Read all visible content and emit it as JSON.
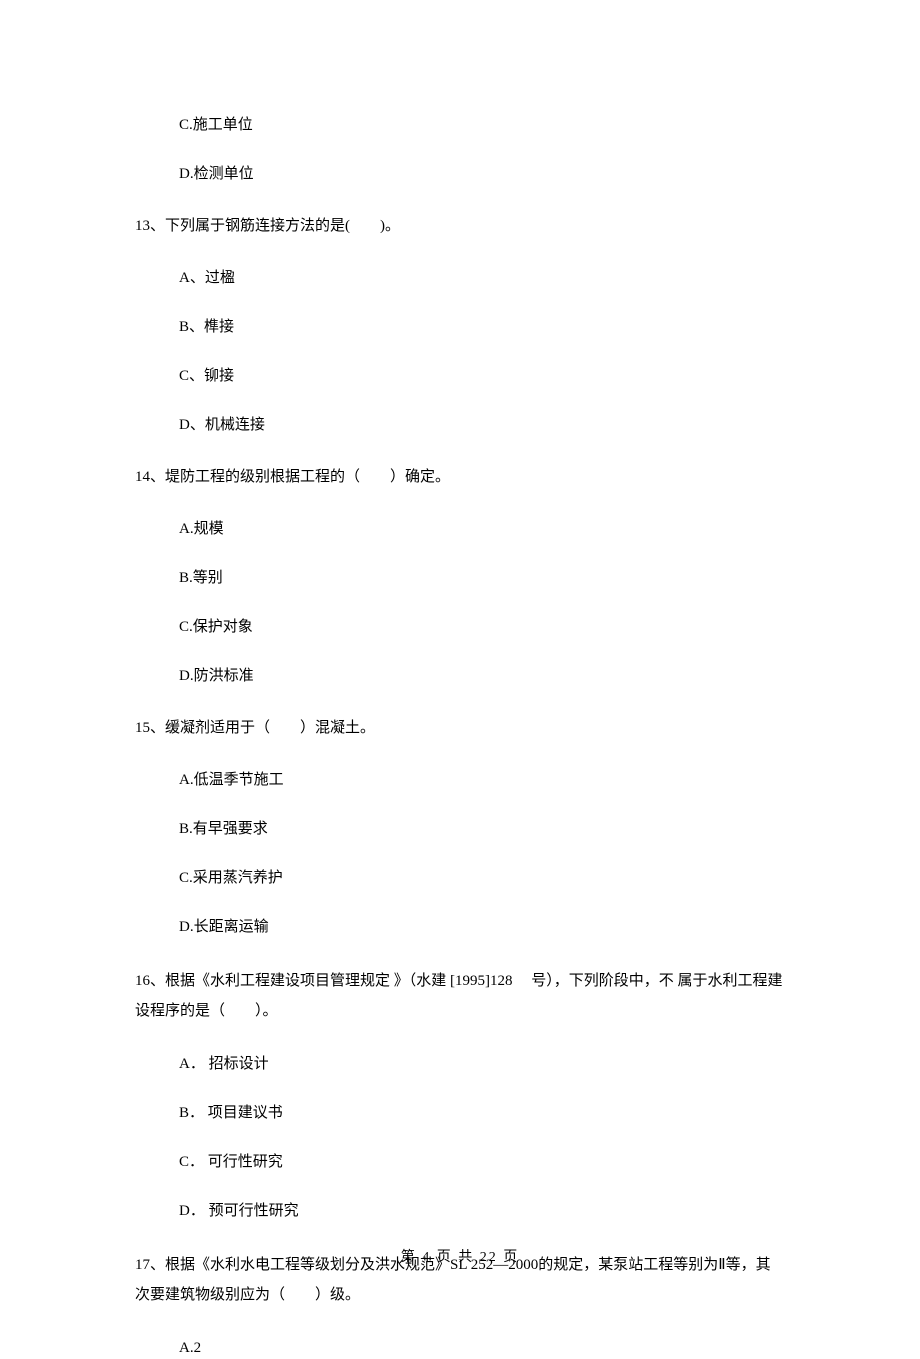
{
  "q12": {
    "optC": "C.施工单位",
    "optD": "D.检测单位"
  },
  "q13": {
    "stem": "13、下列属于钢筋连接方法的是(　　)。",
    "optA": "A、过楹",
    "optB": "B、榫接",
    "optC": "C、铆接",
    "optD": "D、机械连接"
  },
  "q14": {
    "stem": "14、堤防工程的级别根据工程的（　　）确定。",
    "optA": "A.规模",
    "optB": "B.等别",
    "optC": "C.保护对象",
    "optD": "D.防洪标准"
  },
  "q15": {
    "stem": "15、缓凝剂适用于（　　）混凝土。",
    "optA": "A.低温季节施工",
    "optB": "B.有早强要求",
    "optC": "C.采用蒸汽养护",
    "optD": "D.长距离运输"
  },
  "q16": {
    "stem": "16、根据《水利工程建设项目管理规定 》（水建 [1995]128　 号），下列阶段中，不 属于水利工程建设程序的是（　　）。",
    "optA": "A． 招标设计",
    "optB": "B． 项目建议书",
    "optC": "C． 可行性研究",
    "optD": "D． 预可行性研究"
  },
  "q17": {
    "stem": "17、根据《水利水电工程等级划分及洪水规范》SL 252—2000的规定，某泵站工程等别为Ⅱ等，其次要建筑物级别应为（　　）级。",
    "optA": "A.2"
  },
  "footer": "第 4 页 共 22 页"
}
